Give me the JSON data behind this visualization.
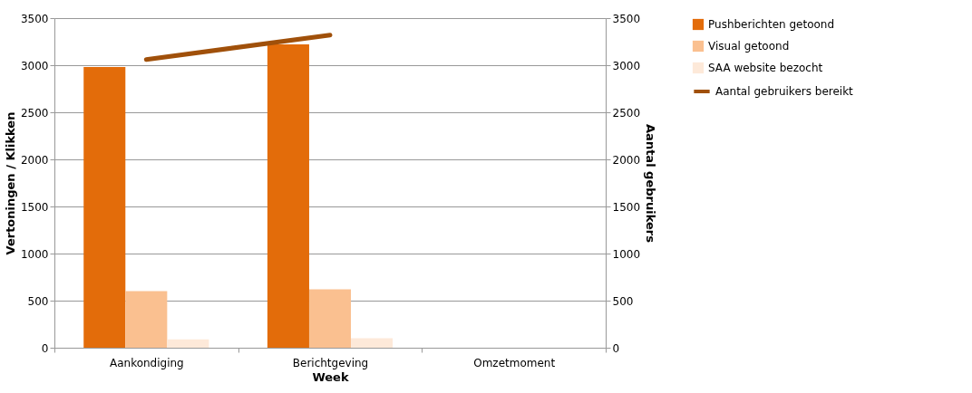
{
  "chart_data": {
    "type": "bar",
    "xlabel": "Week",
    "ylabel": "Vertoningen / Klikken",
    "y2label": "Aantal gebruikers",
    "categories": [
      "Aankondiging",
      "Berichtgeving",
      "Omzetmoment"
    ],
    "series": [
      {
        "name": "Pushberichten getoond",
        "color": "#e36c0a",
        "values": [
          2980,
          3220,
          null
        ]
      },
      {
        "name": "Visual getoond",
        "color": "#fac090",
        "values": [
          600,
          620,
          null
        ]
      },
      {
        "name": "SAA website bezocht",
        "color": "#fde9d9",
        "values": [
          90,
          100,
          null
        ]
      },
      {
        "name": "Aantal gebruikers bereikt",
        "type": "line",
        "axis": "y2",
        "color": "#a0500a",
        "values": [
          3060,
          3320,
          null
        ]
      }
    ],
    "ylim": [
      0,
      3500
    ],
    "yticks": [
      0,
      500,
      1000,
      1500,
      2000,
      2500,
      3000,
      3500
    ],
    "y2lim": [
      0,
      3500
    ],
    "y2ticks": [
      0,
      500,
      1000,
      1500,
      2000,
      2500,
      3000,
      3500
    ],
    "grid": "y",
    "legend": "right"
  }
}
